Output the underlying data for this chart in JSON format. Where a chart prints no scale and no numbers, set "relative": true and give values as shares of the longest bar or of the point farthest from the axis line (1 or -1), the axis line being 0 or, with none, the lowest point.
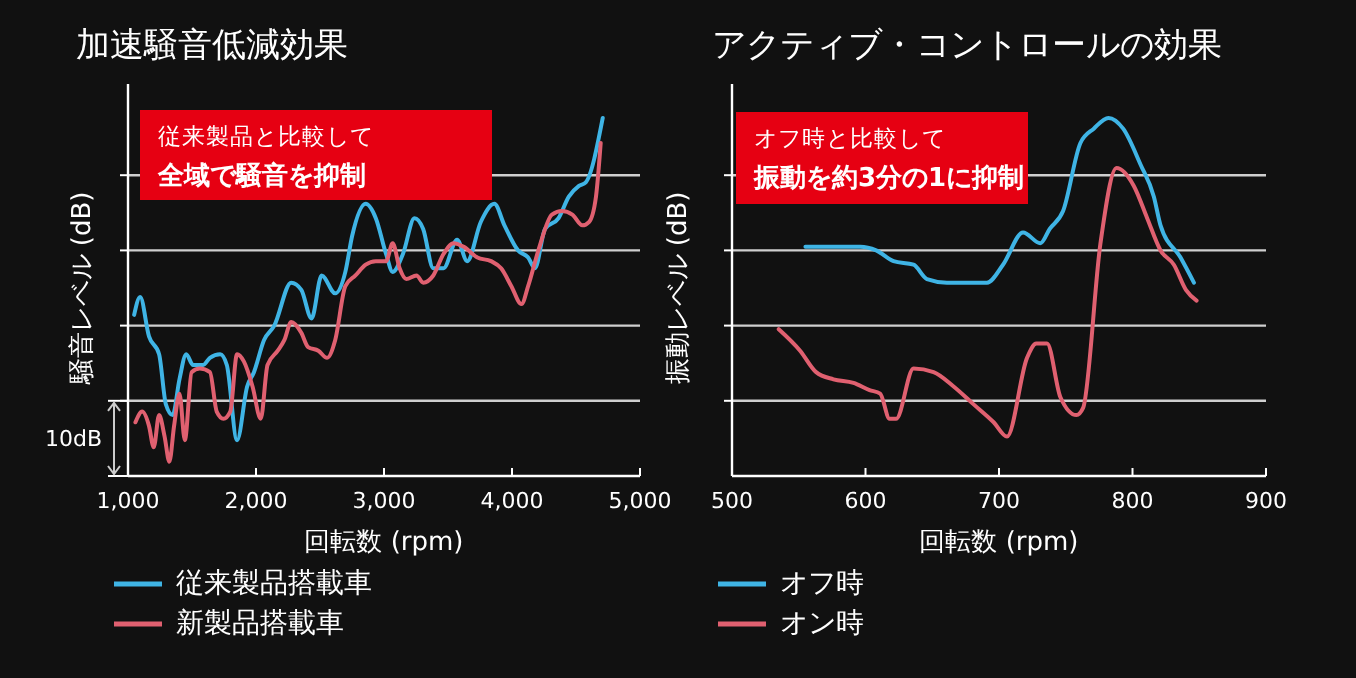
{
  "chart_data": [
    {
      "type": "line",
      "title": "加速騒音低減効果",
      "xlabel": "回転数 (rpm)",
      "ylabel": "騒音レベル (dB)",
      "relative": true,
      "grid": true,
      "legend": "bottom",
      "xlim": [
        1000,
        5000
      ],
      "xticks": [
        {
          "value": 1000,
          "label": "1,000"
        },
        {
          "value": 2000,
          "label": "2,000"
        },
        {
          "value": 3000,
          "label": "3,000"
        },
        {
          "value": 4000,
          "label": "4,000"
        },
        {
          "value": 5000,
          "label": "5,000"
        }
      ],
      "annotations": [
        "従来製品と比較して",
        "全域で騒音を抑制",
        "10dB"
      ],
      "series": [
        {
          "name": "従来製品搭載車",
          "color": "#3fb4e5",
          "x": [
            1048,
            1095,
            1164,
            1243,
            1296,
            1349,
            1402,
            1455,
            1508,
            1587,
            1640,
            1720,
            1772,
            1852,
            1931,
            1984,
            2063,
            2143,
            2275,
            2354,
            2434,
            2513,
            2619,
            2698,
            2751,
            2857,
            2936,
            3016,
            3068,
            3148,
            3238,
            3306,
            3385,
            3465,
            3571,
            3650,
            3757,
            3862,
            3941,
            4047,
            4126,
            4179,
            4258,
            4364,
            4444,
            4523,
            4576,
            4709
          ],
          "values": [
            0.45,
            0.5,
            0.39,
            0.34,
            0.2,
            0.17,
            0.27,
            0.34,
            0.31,
            0.31,
            0.33,
            0.34,
            0.31,
            0.1,
            0.25,
            0.29,
            0.38,
            0.42,
            0.54,
            0.52,
            0.44,
            0.56,
            0.51,
            0.57,
            0.67,
            0.76,
            0.72,
            0.62,
            0.57,
            0.62,
            0.72,
            0.69,
            0.58,
            0.58,
            0.66,
            0.6,
            0.71,
            0.76,
            0.7,
            0.63,
            0.61,
            0.58,
            0.69,
            0.72,
            0.78,
            0.81,
            0.82,
            1
          ]
        },
        {
          "name": "新製品搭載車",
          "color": "#e06070",
          "x": [
            1058,
            1111,
            1164,
            1201,
            1243,
            1286,
            1323,
            1360,
            1402,
            1444,
            1497,
            1561,
            1640,
            1693,
            1746,
            1799,
            1852,
            1905,
            1973,
            2037,
            2090,
            2170,
            2222,
            2275,
            2354,
            2407,
            2487,
            2555,
            2619,
            2698,
            2777,
            2857,
            2936,
            3016,
            3068,
            3122,
            3174,
            3254,
            3306,
            3385,
            3465,
            3544,
            3623,
            3730,
            3836,
            3915,
            3995,
            4074,
            4126,
            4206,
            4312,
            4391,
            4471,
            4550,
            4603,
            4656,
            4693
          ],
          "values": [
            0.15,
            0.18,
            0.14,
            0.08,
            0.17,
            0.11,
            0.04,
            0.14,
            0.23,
            0.1,
            0.29,
            0.3,
            0.29,
            0.18,
            0.16,
            0.18,
            0.34,
            0.32,
            0.25,
            0.16,
            0.31,
            0.35,
            0.38,
            0.43,
            0.4,
            0.36,
            0.35,
            0.33,
            0.38,
            0.53,
            0.56,
            0.59,
            0.6,
            0.6,
            0.65,
            0.58,
            0.55,
            0.56,
            0.54,
            0.56,
            0.62,
            0.65,
            0.64,
            0.61,
            0.6,
            0.58,
            0.53,
            0.48,
            0.53,
            0.63,
            0.73,
            0.74,
            0.73,
            0.7,
            0.71,
            0.78,
            0.93
          ]
        }
      ]
    },
    {
      "type": "line",
      "title": "アクティブ・コントロールの効果",
      "xlabel": "回転数 (rpm)",
      "ylabel": "振動レベル (dB)",
      "relative": true,
      "grid": true,
      "legend": "bottom",
      "xlim": [
        500,
        900
      ],
      "xticks": [
        500,
        600,
        700,
        800,
        900
      ],
      "annotations": [
        "オフ時と比較して",
        "振動を約3分の1に抑制"
      ],
      "series": [
        {
          "name": "オフ時",
          "color": "#3fb4e5",
          "x": [
            555,
            563,
            576,
            596,
            608,
            621,
            636,
            646,
            661,
            691,
            703,
            718,
            731,
            738,
            748,
            761,
            771,
            782,
            793,
            806,
            816,
            821,
            836,
            846
          ],
          "values": [
            0.64,
            0.64,
            0.64,
            0.64,
            0.63,
            0.6,
            0.59,
            0.55,
            0.54,
            0.54,
            0.59,
            0.68,
            0.65,
            0.69,
            0.74,
            0.93,
            0.97,
            1,
            0.97,
            0.87,
            0.78,
            0.7,
            0.61,
            0.54
          ]
        },
        {
          "name": "オン時",
          "color": "#e06070",
          "x": [
            535,
            551,
            563,
            576,
            591,
            603,
            611,
            618,
            623,
            636,
            651,
            666,
            681,
            696,
            706,
            721,
            728,
            736,
            746,
            758,
            763,
            776,
            788,
            801,
            811,
            821,
            831,
            840,
            848
          ],
          "values": [
            0.41,
            0.35,
            0.29,
            0.27,
            0.26,
            0.24,
            0.23,
            0.16,
            0.16,
            0.3,
            0.29,
            0.25,
            0.2,
            0.15,
            0.11,
            0.33,
            0.37,
            0.37,
            0.22,
            0.17,
            0.19,
            0.65,
            0.86,
            0.81,
            0.72,
            0.63,
            0.59,
            0.52,
            0.49
          ]
        }
      ]
    }
  ]
}
